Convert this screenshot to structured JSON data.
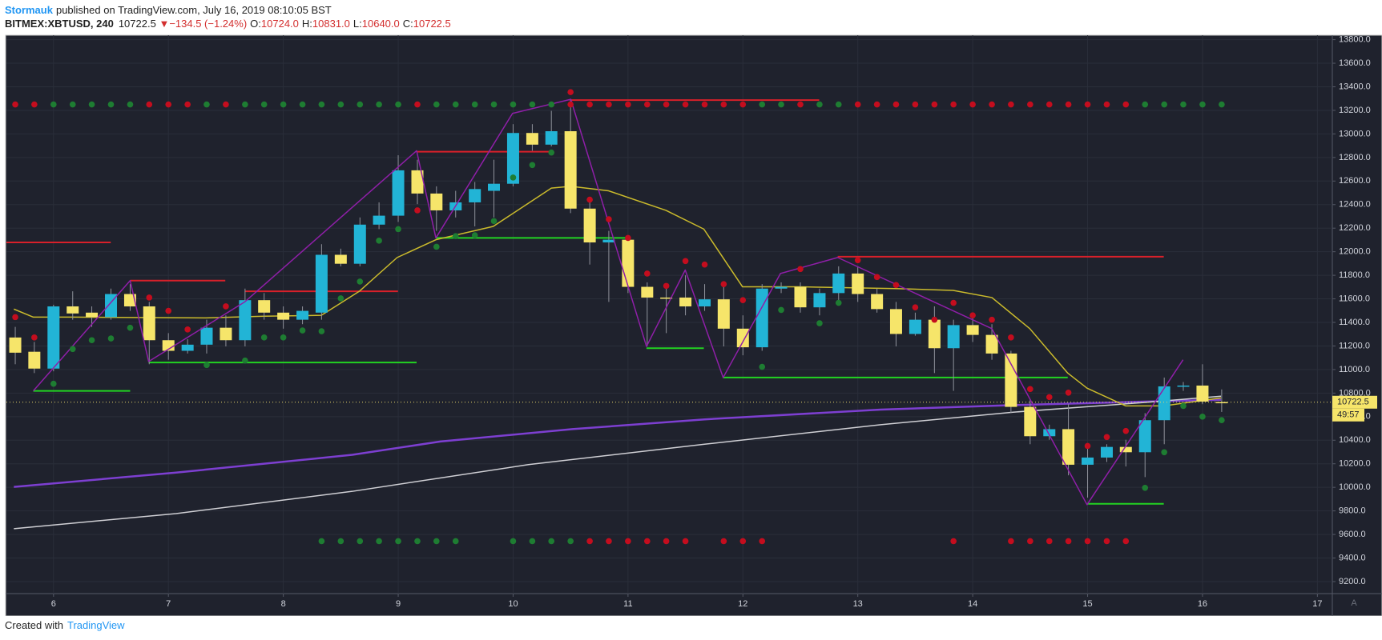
{
  "header": {
    "author": "Stormauk",
    "published": "published on TradingView.com, July 16, 2019 08:10:05 BST",
    "symbol": "BITMEX:XBTUSD, 240",
    "last": "10722.5",
    "arrow": "▼",
    "change": "−134.5 (−1.24%)",
    "o_label": "O:",
    "o": "10724.0",
    "h_label": "H:",
    "h": "10831.0",
    "l_label": "L:",
    "l": "10640.0",
    "c_label": "C:",
    "c": "10722.5"
  },
  "chart_data": {
    "type": "candlestick",
    "x": [
      5.667,
      5.833,
      6,
      6.167,
      6.333,
      6.5,
      6.667,
      6.833,
      7,
      7.167,
      7.333,
      7.5,
      7.667,
      7.833,
      8,
      8.167,
      8.333,
      8.5,
      8.667,
      8.833,
      9,
      9.167,
      9.333,
      9.5,
      9.667,
      9.833,
      10,
      10.167,
      10.333,
      10.5,
      10.667,
      10.833,
      11,
      11.167,
      11.333,
      11.5,
      11.667,
      11.833,
      12,
      12.167,
      12.333,
      12.5,
      12.667,
      12.833,
      13,
      13.167,
      13.333,
      13.5,
      13.667,
      13.833,
      14,
      14.167,
      14.333,
      14.5,
      14.667,
      14.833,
      15,
      15.167,
      15.333,
      15.5,
      15.667,
      15.833,
      16,
      16.167
    ],
    "open": [
      11272,
      11151,
      11008,
      11536,
      11483,
      11445,
      11641,
      11536,
      11249,
      11159,
      11211,
      11355,
      11249,
      11589,
      11483,
      11423,
      11483,
      11974,
      11898,
      12230,
      12306,
      12691,
      12494,
      12351,
      12419,
      12517,
      12577,
      13008,
      12909,
      13023,
      12366,
      12079,
      12102,
      11702,
      11611,
      11611,
      11536,
      11596,
      11347,
      11189,
      11687,
      11702,
      11528,
      11649,
      11815,
      11641,
      11513,
      11302,
      11423,
      11181,
      11377,
      11294,
      11136,
      10683,
      10434,
      10494,
      10192,
      10253,
      10343,
      10298,
      10570,
      10857,
      10864,
      10724
    ],
    "high": [
      11362,
      11234,
      11550,
      11664,
      11536,
      11687,
      11725,
      11574,
      11309,
      11257,
      11423,
      11460,
      11687,
      11649,
      11536,
      11536,
      12064,
      12026,
      12291,
      12419,
      12819,
      12781,
      12555,
      12517,
      12592,
      12781,
      13083,
      13083,
      13196,
      13294,
      12419,
      12177,
      12140,
      11740,
      11725,
      11800,
      11725,
      11725,
      11460,
      11725,
      11740,
      11740,
      11687,
      11876,
      11876,
      11687,
      11574,
      11483,
      11536,
      11423,
      11483,
      11385,
      11159,
      10743,
      10532,
      10706,
      10366,
      10366,
      10404,
      10630,
      10932,
      10894,
      11045,
      10831
    ],
    "low": [
      11045,
      10970,
      10985,
      11423,
      11362,
      11423,
      11498,
      11045,
      11083,
      11136,
      11136,
      11196,
      11196,
      11423,
      11347,
      11385,
      11423,
      11876,
      11876,
      12192,
      12253,
      12404,
      12177,
      12291,
      12215,
      12291,
      12555,
      12857,
      12894,
      12328,
      11891,
      11574,
      11649,
      11196,
      11309,
      11460,
      11498,
      11196,
      11121,
      11159,
      11649,
      11483,
      11460,
      11574,
      11574,
      11483,
      11196,
      11287,
      10970,
      10819,
      11234,
      11083,
      10630,
      10366,
      10404,
      10102,
      9913,
      10215,
      10177,
      10087,
      10366,
      10819,
      10706,
      10640
    ],
    "close": [
      11143,
      11008,
      11536,
      11476,
      11445,
      11641,
      11536,
      11249,
      11159,
      11211,
      11355,
      11249,
      11589,
      11483,
      11423,
      11498,
      11974,
      11898,
      12230,
      12306,
      12691,
      12494,
      12351,
      12419,
      12532,
      12577,
      13008,
      12909,
      13023,
      12366,
      12079,
      12102,
      11702,
      11611,
      11604,
      11536,
      11596,
      11347,
      11189,
      11687,
      11702,
      11528,
      11649,
      11815,
      11641,
      11513,
      11302,
      11423,
      11181,
      11377,
      11294,
      11136,
      10683,
      10434,
      10494,
      10192,
      10253,
      10343,
      10298,
      10570,
      10857,
      10864,
      10728,
      10722.5
    ],
    "up_color": "#22b4d6",
    "down_color": "#f6e56a",
    "wick_color": "#8f929b",
    "xlim": [
      5.59,
      17.13
    ],
    "xticks": [
      6,
      7,
      8,
      9,
      10,
      11,
      12,
      13,
      14,
      15,
      16,
      17
    ],
    "ylim": [
      9098,
      13838
    ],
    "yticks": [
      {
        "value": 9200,
        "label": "9200.0"
      },
      {
        "value": 9400,
        "label": "9400.0"
      },
      {
        "value": 9600,
        "label": "9600.0"
      },
      {
        "value": 9800,
        "label": "9800.0"
      },
      {
        "value": 10000,
        "label": "10000.0"
      },
      {
        "value": 10200,
        "label": "10200.0"
      },
      {
        "value": 10400,
        "label": "10400.0"
      },
      {
        "value": 10600,
        "label": "10600.0"
      },
      {
        "value": 10800,
        "label": "10800.0"
      },
      {
        "value": 11000,
        "label": "11000.0"
      },
      {
        "value": 11200,
        "label": "11200.0"
      },
      {
        "value": 11400,
        "label": "11400.0"
      },
      {
        "value": 11600,
        "label": "11600.0"
      },
      {
        "value": 11800,
        "label": "11800.0"
      },
      {
        "value": 12000,
        "label": "12000.0"
      },
      {
        "value": 12200,
        "label": "12200.0"
      },
      {
        "value": 12400,
        "label": "12400.0"
      },
      {
        "value": 12600,
        "label": "12600.0"
      },
      {
        "value": 12800,
        "label": "12800.0"
      },
      {
        "value": 13000,
        "label": "13000.0"
      },
      {
        "value": 13200,
        "label": "13200.0"
      },
      {
        "value": 13400,
        "label": "13400.0"
      },
      {
        "value": 13600,
        "label": "13600.0"
      },
      {
        "value": 13800,
        "label": "13800.0"
      }
    ],
    "grid": true,
    "lines": [
      {
        "color": "#7d3fd1",
        "width": 2.5,
        "x": [
          5.655,
          7.066,
          8.6,
          9.367,
          10.517,
          11.667,
          13.2,
          14.351,
          15.502,
          16.161
        ],
        "values": [
          10004,
          10125,
          10276,
          10389,
          10494,
          10577,
          10660,
          10698,
          10728,
          10743
        ]
      },
      {
        "color": "#cfcfd4",
        "width": 1.5,
        "x": [
          5.655,
          7.066,
          8.6,
          10.133,
          11.667,
          13.2,
          14.351,
          15.502,
          16.161
        ],
        "values": [
          9649,
          9777,
          9966,
          10193,
          10366,
          10532,
          10638,
          10721,
          10774
        ]
      },
      {
        "color": "#cbbb2c",
        "width": 1.5,
        "x": [
          5.655,
          5.824,
          6.161,
          7.327,
          7.833,
          8.331,
          8.661,
          8.991,
          9.328,
          9.827,
          10.333,
          10.502,
          10.831,
          11.33,
          11.66,
          11.997,
          12.495,
          13.331,
          13.83,
          14.167,
          14.497,
          14.827,
          14.995,
          15.333,
          15.663,
          16.161
        ],
        "values": [
          11513,
          11445,
          11445,
          11438,
          11453,
          11460,
          11664,
          11951,
          12102,
          12215,
          12540,
          12555,
          12517,
          12351,
          12192,
          11702,
          11702,
          11687,
          11672,
          11611,
          11347,
          10970,
          10842,
          10691,
          10691,
          10759
        ]
      },
      {
        "color": "#8f1fa8",
        "width": 1.5,
        "x": [
          5.824,
          6.667,
          6.828,
          7.664,
          9.16,
          9.328,
          9.995,
          10.502,
          11.161,
          11.498,
          11.828,
          12.327,
          12.825,
          14.167,
          14.995,
          15.831
        ],
        "values": [
          10819,
          11755,
          11068,
          11574,
          12857,
          12117,
          13174,
          13294,
          11196,
          11845,
          10932,
          11815,
          11951,
          11347,
          9853,
          11083
        ]
      }
    ],
    "dots": [
      {
        "color": "#c40d1e",
        "values": [
          11445,
          11272,
          null,
          null,
          null,
          null,
          null,
          11611,
          11498,
          11340,
          null,
          11536,
          null,
          null,
          null,
          null,
          null,
          null,
          null,
          null,
          null,
          12351,
          null,
          null,
          null,
          null,
          null,
          null,
          null,
          13355,
          12442,
          12276,
          12117,
          11815,
          11710,
          11921,
          11891,
          11725,
          11589,
          null,
          null,
          11853,
          null,
          null,
          11928,
          11785,
          11717,
          11528,
          11423,
          11566,
          11460,
          11423,
          11272,
          10834,
          10766,
          10804,
          10351,
          10427,
          10479,
          null,
          null,
          null,
          null,
          null
        ]
      },
      {
        "color": "#1e7d32",
        "values": [
          null,
          null,
          10879,
          11174,
          11249,
          11264,
          11355,
          null,
          null,
          null,
          11038,
          null,
          11076,
          11272,
          11272,
          11332,
          11325,
          11604,
          11747,
          12094,
          12192,
          null,
          12042,
          12132,
          12140,
          12260,
          12630,
          12736,
          12842,
          null,
          null,
          null,
          null,
          null,
          null,
          null,
          null,
          null,
          null,
          11023,
          11506,
          null,
          11393,
          11566,
          null,
          null,
          null,
          null,
          null,
          null,
          null,
          null,
          null,
          null,
          null,
          null,
          null,
          null,
          null,
          9996,
          10298,
          10691,
          10600,
          10570
        ]
      },
      {
        "color": "#c40d1e",
        "values": [
          13250,
          13250,
          null,
          null,
          null,
          null,
          null,
          13250,
          13250,
          13250,
          null,
          13250,
          null,
          null,
          null,
          null,
          null,
          null,
          null,
          null,
          null,
          13250,
          null,
          null,
          null,
          null,
          null,
          null,
          null,
          13250,
          13250,
          13250,
          13250,
          13250,
          13250,
          13250,
          13250,
          13250,
          13250,
          null,
          null,
          13250,
          null,
          null,
          13250,
          13250,
          13250,
          13250,
          13250,
          13250,
          13250,
          13250,
          13250,
          13250,
          13250,
          13250,
          13250,
          13250,
          13250,
          null,
          null,
          null,
          null,
          null
        ]
      },
      {
        "color": "#1e7d32",
        "values": [
          null,
          null,
          13250,
          13250,
          13250,
          13250,
          13250,
          null,
          null,
          null,
          13250,
          null,
          13250,
          13250,
          13250,
          13250,
          13250,
          13250,
          13250,
          13250,
          13250,
          null,
          13250,
          13250,
          13250,
          13250,
          13250,
          13250,
          13250,
          null,
          null,
          null,
          null,
          null,
          null,
          null,
          null,
          null,
          null,
          13250,
          13250,
          null,
          13250,
          13250,
          null,
          null,
          null,
          null,
          null,
          null,
          null,
          null,
          null,
          null,
          null,
          null,
          null,
          null,
          null,
          13250,
          13250,
          13250,
          13250,
          13250
        ]
      },
      {
        "color": "#1e7d32",
        "values": [
          null,
          null,
          null,
          null,
          null,
          null,
          null,
          null,
          null,
          null,
          null,
          null,
          null,
          null,
          null,
          null,
          9543,
          9543,
          9543,
          9543,
          9543,
          9543,
          9543,
          9543,
          null,
          null,
          9543,
          9543,
          9543,
          9543,
          null,
          null,
          null,
          null,
          null,
          null,
          null,
          null,
          null,
          null,
          null,
          null,
          null,
          null,
          null,
          null,
          null,
          null,
          null,
          null,
          null,
          null,
          null,
          null,
          null,
          null,
          null,
          null,
          null,
          null,
          null,
          null,
          null,
          null
        ]
      },
      {
        "color": "#c40d1e",
        "values": [
          null,
          null,
          null,
          null,
          null,
          null,
          null,
          null,
          null,
          null,
          null,
          null,
          null,
          null,
          null,
          null,
          null,
          null,
          null,
          null,
          null,
          null,
          null,
          null,
          null,
          null,
          null,
          null,
          null,
          null,
          9543,
          9543,
          9543,
          9543,
          9543,
          9543,
          null,
          9543,
          9543,
          9543,
          null,
          null,
          null,
          null,
          null,
          null,
          null,
          null,
          null,
          9543,
          null,
          null,
          9543,
          9543,
          9543,
          9543,
          9543,
          9543,
          9543,
          null,
          null,
          null,
          null,
          null
        ]
      }
    ],
    "levels": [
      {
        "color": "#d8202a",
        "x": [
          5.586,
          6.498
        ],
        "value": 12079
      },
      {
        "color": "#d8202a",
        "x": [
          6.667,
          7.495
        ],
        "value": 11755
      },
      {
        "color": "#d8202a",
        "x": [
          7.664,
          8.998
        ],
        "value": 11664
      },
      {
        "color": "#d8202a",
        "x": [
          9.16,
          10.333
        ],
        "value": 12849
      },
      {
        "color": "#d8202a",
        "x": [
          10.502,
          12.664
        ],
        "value": 13287
      },
      {
        "color": "#d8202a",
        "x": [
          12.825,
          15.663
        ],
        "value": 11958
      },
      {
        "color": "#22d322",
        "x": [
          5.824,
          6.667
        ],
        "value": 10819
      },
      {
        "color": "#22d322",
        "x": [
          6.828,
          9.16
        ],
        "value": 11060
      },
      {
        "color": "#22d322",
        "x": [
          9.328,
          10.992
        ],
        "value": 12117
      },
      {
        "color": "#22d322",
        "x": [
          11.161,
          11.66
        ],
        "value": 11181
      },
      {
        "color": "#22d322",
        "x": [
          11.828,
          14.827
        ],
        "value": 10932
      },
      {
        "color": "#22d322",
        "x": [
          14.995,
          15.663
        ],
        "value": 9860
      }
    ],
    "last_price": 10722.5,
    "countdown": "49:57",
    "axis_mode": "A"
  },
  "footer": {
    "created": "Created with",
    "brand": "TradingView"
  }
}
